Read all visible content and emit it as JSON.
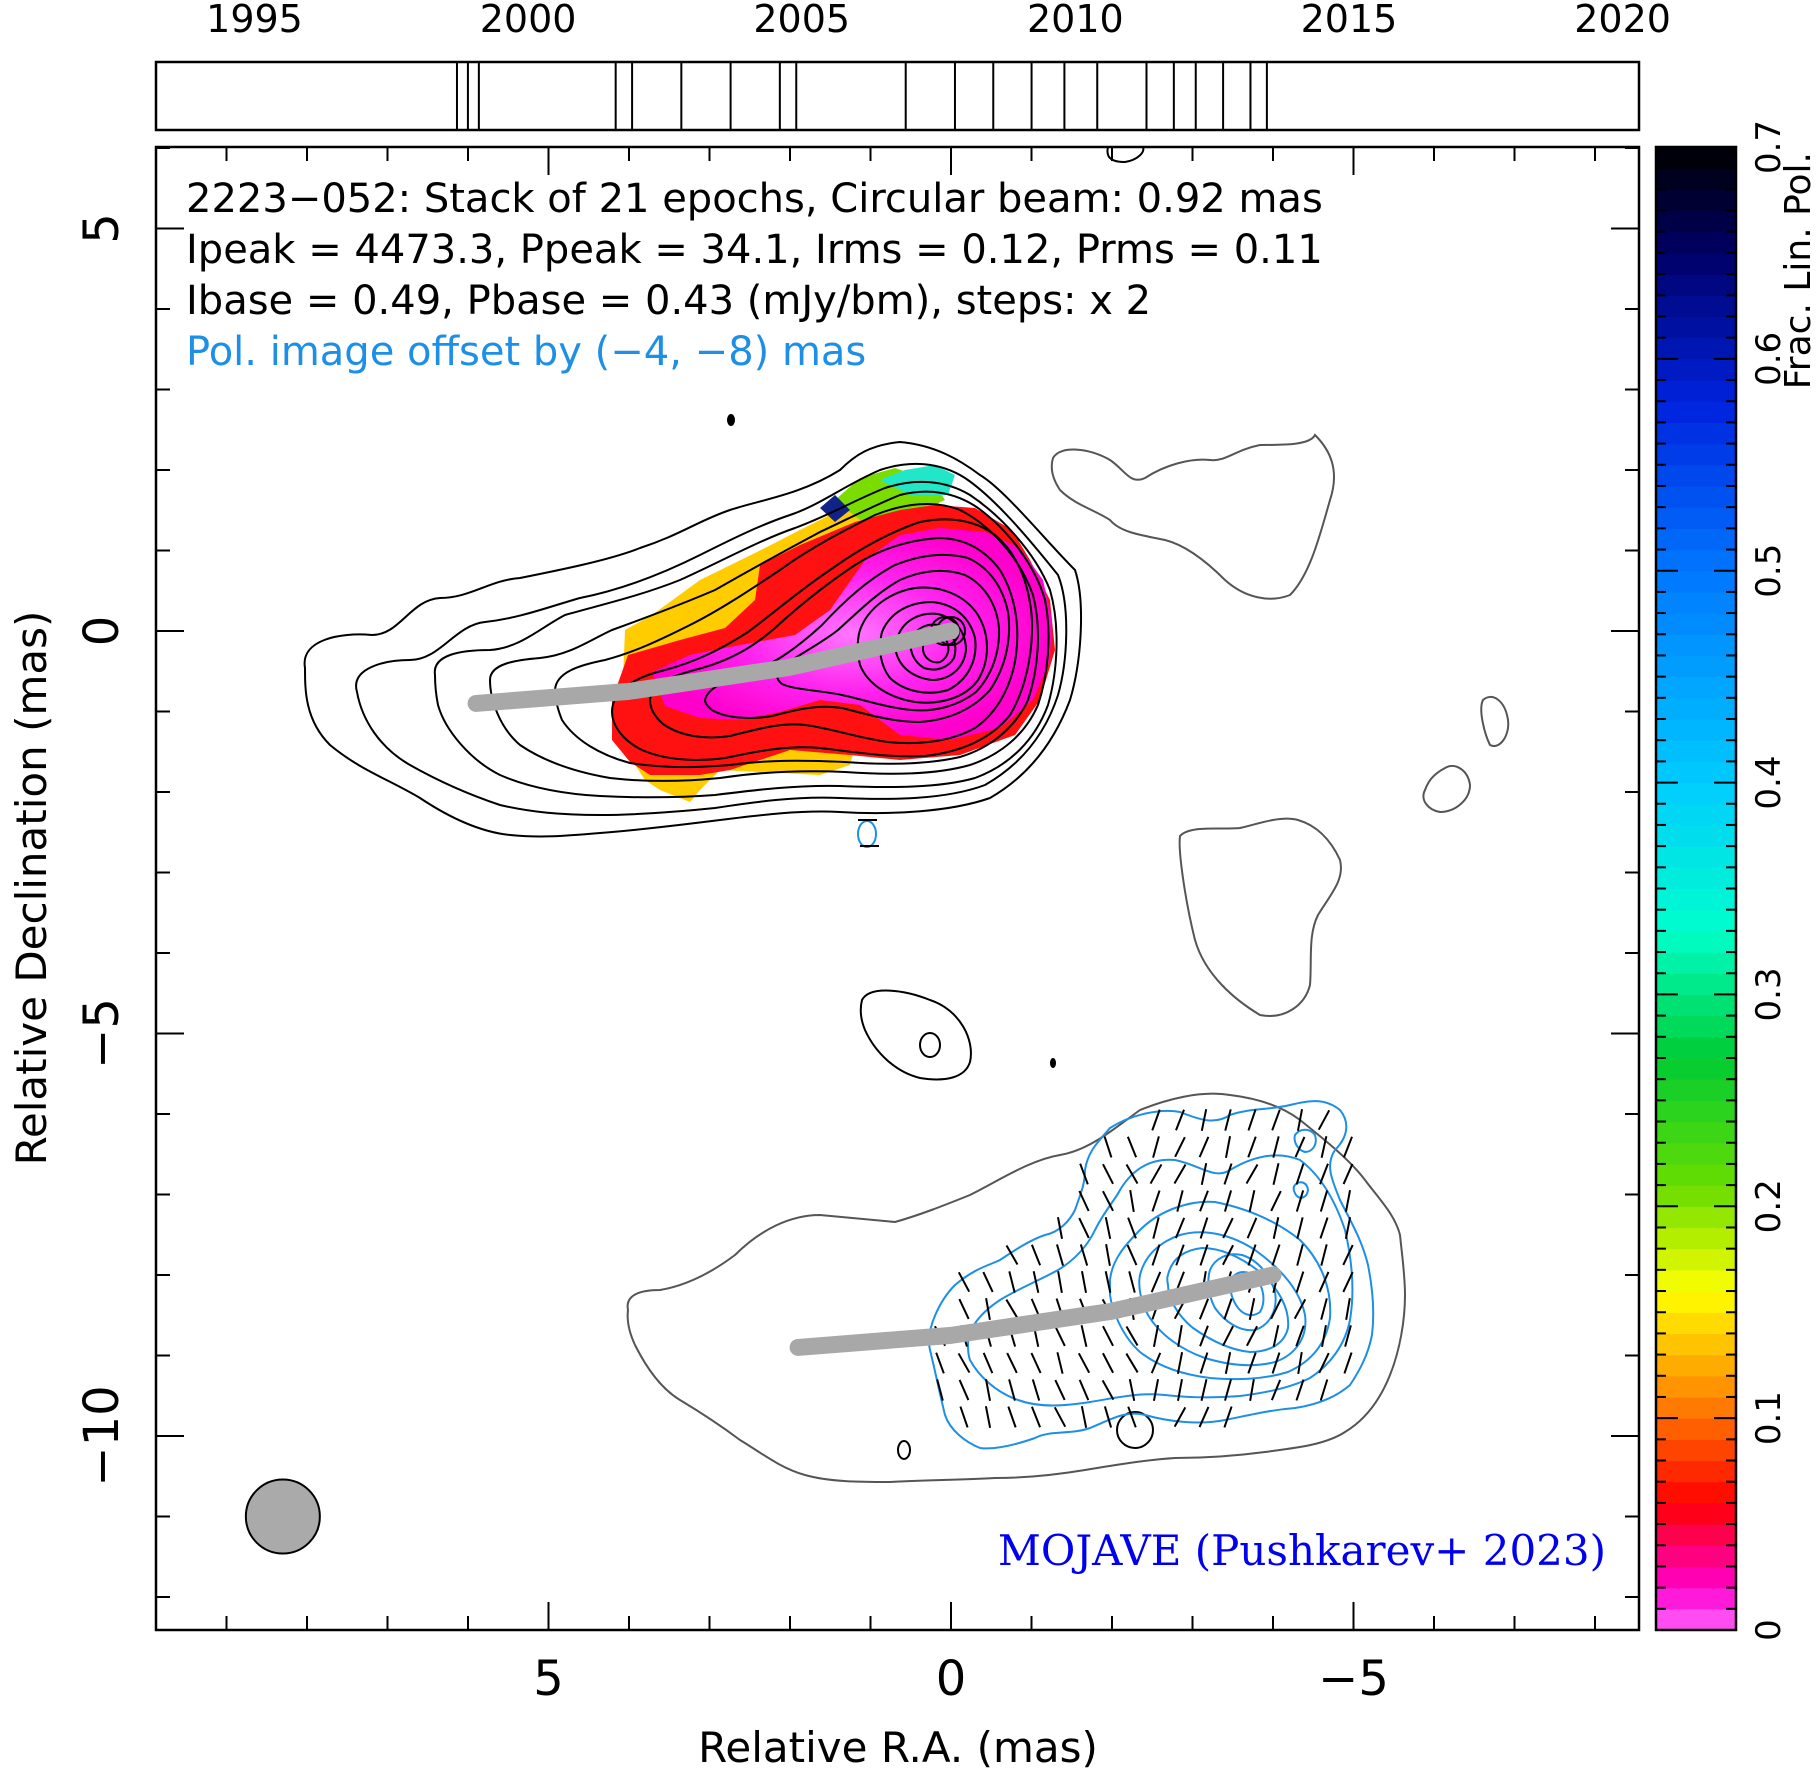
{
  "chart_data": {
    "type": "contour",
    "title_lines": [
      "2223−052: Stack of 21 epochs, Circular beam: 0.92 mas",
      "Ipeak = 4473.3, Ppeak = 34.1, Irms = 0.12, Prms = 0.11",
      "Ibase = 0.49, Pbase = 0.43 (mJy/bm), steps: x 2"
    ],
    "pol_offset_note": "Pol. image offset by (−4, −8) mas",
    "credit": "MOJAVE (Pushkarev+ 2023)",
    "xlabel": "Relative R.A. (mas)",
    "ylabel": "Relative Declination (mas)",
    "xlim": [
      9.8,
      -8.5
    ],
    "ylim": [
      -12.4,
      6.0
    ],
    "x_ticks": [
      {
        "value": 5,
        "label": "5"
      },
      {
        "value": 0,
        "label": "0"
      },
      {
        "value": -5,
        "label": "−5"
      }
    ],
    "y_ticks": [
      {
        "value": 5,
        "label": "5"
      },
      {
        "value": 0,
        "label": "0"
      },
      {
        "value": -5,
        "label": "−5"
      },
      {
        "value": -10,
        "label": "−10"
      }
    ],
    "timeline": {
      "range": [
        1993.2,
        2020.3
      ],
      "year_labels": [
        {
          "value": 1995,
          "label": "1995"
        },
        {
          "value": 2000,
          "label": "2000"
        },
        {
          "value": 2005,
          "label": "2005"
        },
        {
          "value": 2010,
          "label": "2010"
        },
        {
          "value": 2015,
          "label": "2015"
        },
        {
          "value": 2020,
          "label": "2020"
        }
      ],
      "epochs": [
        1998.7,
        1998.9,
        1999.1,
        2001.6,
        2001.9,
        2002.8,
        2003.7,
        2004.6,
        2004.9,
        2006.9,
        2007.8,
        2008.5,
        2009.2,
        2009.8,
        2010.4,
        2011.3,
        2011.8,
        2012.2,
        2012.7,
        2013.2,
        2013.5
      ]
    },
    "colorbar": {
      "label": "Frac. Lin. Pol.",
      "range": [
        0,
        0.7
      ],
      "ticks": [
        {
          "value": 0,
          "label": "0"
        },
        {
          "value": 0.1,
          "label": "0.1"
        },
        {
          "value": 0.2,
          "label": "0.2"
        },
        {
          "value": 0.3,
          "label": "0.3"
        },
        {
          "value": 0.4,
          "label": "0.4"
        },
        {
          "value": 0.5,
          "label": "0.5"
        },
        {
          "value": 0.6,
          "label": "0.6"
        },
        {
          "value": 0.7,
          "label": "0.7"
        }
      ],
      "stops": [
        {
          "value": 0.0,
          "color": "#ff66ff"
        },
        {
          "value": 0.02,
          "color": "#ff00cc"
        },
        {
          "value": 0.06,
          "color": "#ff0000"
        },
        {
          "value": 0.11,
          "color": "#ff8800"
        },
        {
          "value": 0.16,
          "color": "#ffff00"
        },
        {
          "value": 0.21,
          "color": "#66dd00"
        },
        {
          "value": 0.27,
          "color": "#00cc33"
        },
        {
          "value": 0.33,
          "color": "#00ffcc"
        },
        {
          "value": 0.4,
          "color": "#00ccff"
        },
        {
          "value": 0.5,
          "color": "#0077ff"
        },
        {
          "value": 0.58,
          "color": "#0022dd"
        },
        {
          "value": 0.65,
          "color": "#000066"
        },
        {
          "value": 0.7,
          "color": "#000000"
        }
      ]
    },
    "beam": {
      "x": 8.3,
      "y": -11.0,
      "diameter_mas": 0.92
    },
    "core": {
      "x": 0,
      "y": 0
    },
    "ridgelines": [
      {
        "name": "total intensity",
        "points": [
          [
            5.9,
            -0.9
          ],
          [
            4.0,
            -0.75
          ],
          [
            2.0,
            -0.45
          ],
          [
            0.0,
            0.0
          ]
        ]
      },
      {
        "name": "polarization",
        "points": [
          [
            1.9,
            -8.9
          ],
          [
            0.0,
            -8.75
          ],
          [
            -2.0,
            -8.45
          ],
          [
            -4.0,
            -8.0
          ]
        ]
      }
    ],
    "contour_colors": {
      "stokes_i": "#000000",
      "base_contour": "#555555",
      "polarization": "#1e8fe6"
    }
  }
}
